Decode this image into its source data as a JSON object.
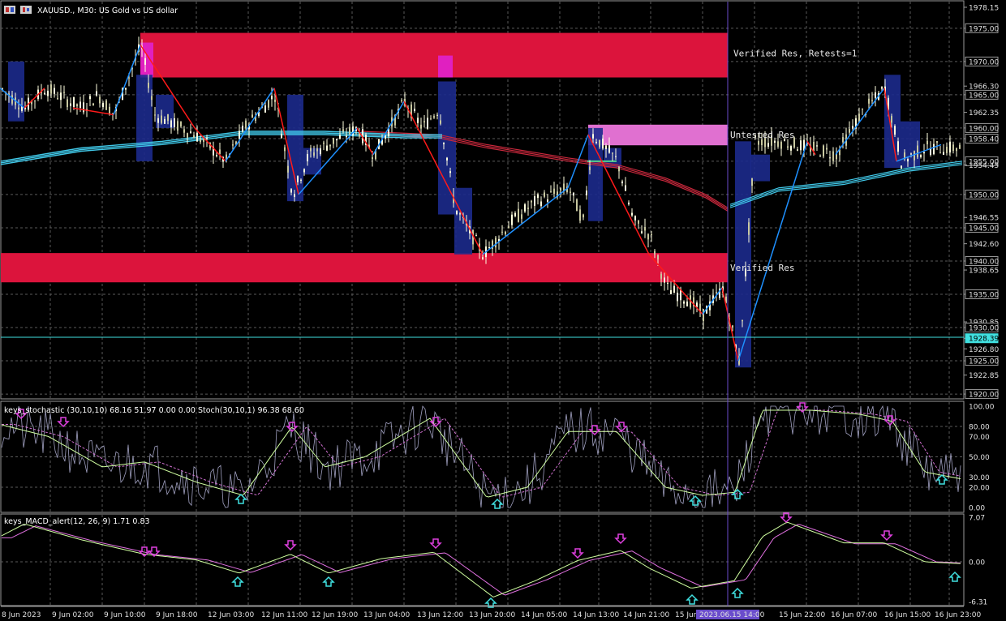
{
  "header": {
    "symbol": "XAUUSD.",
    "timeframe": "M30",
    "description": "US Gold vs US dollar",
    "title": "XAUUSD., M30:  US Gold vs US dollar"
  },
  "colors": {
    "background": "#000000",
    "zone": "#dc143c",
    "zone_highlight": "#e020c0",
    "untested_zone": "#e070d0",
    "wave_up": "#1e90ff",
    "wave_down": "#ff1a1a",
    "candle_bull": "#ffffe0",
    "candle_bear": "#ffffe0",
    "ma_red": "#c8283c",
    "ma_cyan": "#40c8e8",
    "bar_box": "#1c2a8c",
    "current_line": "#40e0e0",
    "cursor_line": "#6a4ccc",
    "arrow_down": "#e040e0",
    "arrow_up": "#40e0e0",
    "stoch_main": "#d0ffa0",
    "stoch_signal": "#d070d0",
    "stoch_raw": "#a0a0c0",
    "macd_main": "#d0ffa0",
    "macd_signal": "#e070e0"
  },
  "zones": [
    {
      "label": "Verified Res, Retests=1",
      "top": 1974.3,
      "bottom": 1967.6
    },
    {
      "label": "Untested Res",
      "top": 1960.5,
      "bottom": 1957.4
    },
    {
      "label": "Verified Res",
      "top": 1941.2,
      "bottom": 1936.8
    }
  ],
  "price_axis": {
    "labels": [
      "1978.15",
      "1975.00",
      "1970.00",
      "1966.30",
      "1965.00",
      "1962.35",
      "1960.00",
      "1958.40",
      "1955.00",
      "1954.45",
      "1950.00",
      "1946.55",
      "1945.00",
      "1942.60",
      "1940.00",
      "1938.65",
      "1935.00",
      "1930.85",
      "1930.00",
      "1928.39",
      "1926.80",
      "1925.00",
      "1922.85",
      "1920.00"
    ],
    "boxed": [
      "1975.00",
      "1970.00",
      "1965.00",
      "1960.00",
      "1958.40",
      "1955.00",
      "1950.00",
      "1945.00",
      "1940.00",
      "1935.00",
      "1930.00",
      "1925.00",
      "1920.00"
    ],
    "current_price": "1928.39",
    "min": 1919.4,
    "max": 1979.0
  },
  "time_axis": {
    "labels": [
      "8 Jun 2023",
      "9 Jun 02:00",
      "9 Jun 10:00",
      "9 Jun 18:00",
      "12 Jun 03:00",
      "12 Jun 11:00",
      "12 Jun 19:00",
      "13 Jun 04:00",
      "13 Jun 12:00",
      "13 Jun 20:00",
      "14 Jun 05:00",
      "14 Jun 13:00",
      "14 Jun 21:00",
      "15 Jun",
      "15 Jun 22:00",
      "16 Jun 07:00",
      "16 Jun 15:00",
      "16 Jun 23:00"
    ],
    "cursor_label": "2023.06.15 14:00"
  },
  "stochastic": {
    "title": "keys_stochastic (30,10,10) 68.16 51.97 0.00 0.00 Stoch(30,10,1) 96.38 68.60",
    "levels": [
      "100.00",
      "80.00",
      "70.00",
      "50.00",
      "30.00",
      "20.00",
      "0.00"
    ]
  },
  "macd": {
    "title": "keys_MACD_alert(12, 26, 9) 1.71 0.83",
    "levels": [
      "7.07",
      "0.00",
      "-6.31"
    ]
  },
  "chart_data": {
    "type": "line",
    "title": "XAUUSD., M30:  US Gold vs US dollar",
    "x": [
      "8 Jun 2023",
      "9 Jun 02:00",
      "9 Jun 10:00",
      "9 Jun 18:00",
      "12 Jun 03:00",
      "12 Jun 11:00",
      "12 Jun 19:00",
      "13 Jun 04:00",
      "13 Jun 12:00",
      "13 Jun 20:00",
      "14 Jun 05:00",
      "14 Jun 13:00",
      "14 Jun 21:00",
      "15 Jun",
      "15 Jun 22:00",
      "16 Jun 07:00",
      "16 Jun 15:00",
      "16 Jun 23:00"
    ],
    "series": [
      {
        "values": [
          1966.5,
          1963.0,
          1972.5,
          1958.0,
          1957.0,
          1950.0,
          1958.0,
          1964.0,
          1942.0,
          1946.0,
          1952.0,
          1954.0,
          1936.0,
          1926.0,
          1958.0,
          1960.0,
          1956.0,
          1957.5
        ]
      }
    ],
    "ylim": [
      1920.0,
      1978.15
    ],
    "stochastic_main": [
      82,
      65,
      25,
      45,
      18,
      80,
      42,
      52,
      88,
      10,
      45,
      80,
      30,
      15,
      96,
      92,
      85,
      30
    ],
    "macd_main": [
      6.0,
      3.5,
      1.2,
      0.5,
      -2.0,
      1.2,
      -2.0,
      0.8,
      1.5,
      -5.5,
      -1.0,
      1.8,
      -4.0,
      -3.0,
      6.0,
      3.2,
      2.8,
      -0.3
    ]
  }
}
